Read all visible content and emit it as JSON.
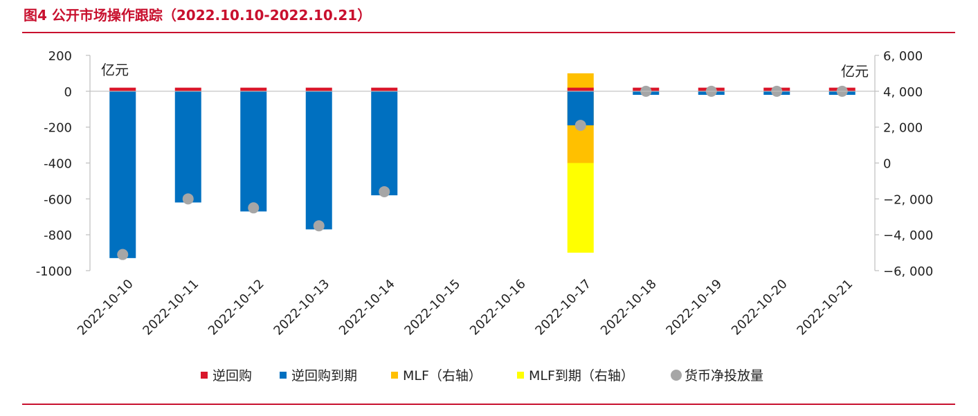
{
  "figure": {
    "title": "图4  公开市场操作跟踪（2022.10.10-2022.10.21）"
  },
  "colors": {
    "accent": "#c8102e",
    "reverse_repo": "#d9162a",
    "reverse_repo_maturity": "#0070c0",
    "mlf": "#ffc000",
    "mlf_maturity": "#ffff00",
    "net_injection": "#a6a6a6"
  },
  "chart_data": {
    "type": "bar",
    "categories": [
      "2022-10-10",
      "2022-10-11",
      "2022-10-12",
      "2022-10-13",
      "2022-10-14",
      "2022-10-15",
      "2022-10-16",
      "2022-10-17",
      "2022-10-18",
      "2022-10-19",
      "2022-10-20",
      "2022-10-21"
    ],
    "left_axis": {
      "unit": "亿元",
      "range": [
        -1000,
        200
      ],
      "ticks": [
        "200",
        "0",
        "-200",
        "-400",
        "-600",
        "-800",
        "-1000"
      ],
      "tick_values": [
        200,
        0,
        -200,
        -400,
        -600,
        -800,
        -1000
      ]
    },
    "right_axis": {
      "unit": "亿元",
      "range": [
        -6000,
        6000
      ],
      "ticks": [
        "6, 000",
        "4, 000",
        "2, 000",
        "0",
        "−2, 000",
        "−4, 000",
        "−6, 000"
      ],
      "tick_values": [
        6000,
        4000,
        2000,
        0,
        -2000,
        -4000,
        -6000
      ]
    },
    "series": [
      {
        "name": "逆回购",
        "axis": "left",
        "kind": "bar",
        "values": [
          20,
          20,
          20,
          20,
          20,
          0,
          0,
          20,
          20,
          20,
          20,
          20
        ]
      },
      {
        "name": "逆回购到期",
        "axis": "left",
        "kind": "bar",
        "values": [
          -930,
          -620,
          -670,
          -770,
          -580,
          0,
          0,
          -190,
          -20,
          -20,
          -20,
          -20
        ]
      },
      {
        "name": "MLF（右轴）",
        "axis": "right",
        "kind": "bar",
        "values": [
          0,
          0,
          0,
          0,
          0,
          0,
          0,
          5000,
          0,
          0,
          0,
          0
        ]
      },
      {
        "name": "MLF到期（右轴）",
        "axis": "right",
        "kind": "bar",
        "values": [
          0,
          0,
          0,
          0,
          0,
          0,
          0,
          -5000,
          0,
          0,
          0,
          0
        ]
      },
      {
        "name": "货币净投放量",
        "axis": "right",
        "kind": "scatter",
        "values": [
          -5100,
          -2000,
          -2500,
          -3500,
          -1600,
          null,
          null,
          2100,
          4000,
          4000,
          4000,
          4000
        ]
      }
    ],
    "legend": {
      "position": "bottom"
    },
    "grid": false
  }
}
